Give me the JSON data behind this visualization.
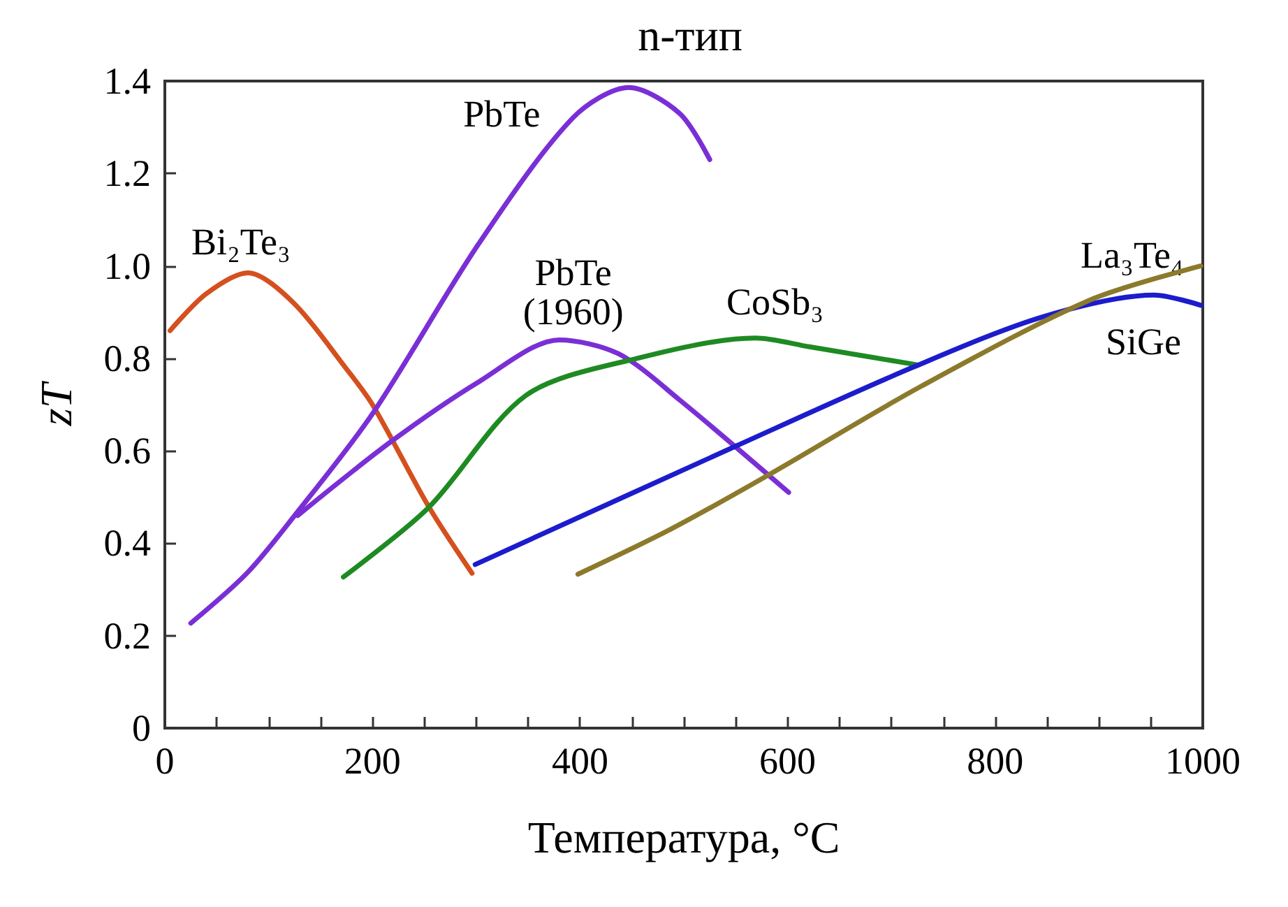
{
  "chart_data": {
    "type": "line",
    "title": "n-тип",
    "xlabel": "Температура, °C",
    "ylabel": "zT",
    "xlim": [
      0,
      1000
    ],
    "xticks": [
      0,
      {
        "value": 50,
        "label": null
      },
      200,
      {
        "value": 100,
        "label": null
      },
      {
        "value": 150,
        "label": null
      },
      {
        "value": 250,
        "label": null
      },
      {
        "value": 300,
        "label": null
      },
      {
        "value": 350,
        "label": null
      },
      400,
      {
        "value": 450,
        "label": null
      },
      {
        "value": 500,
        "label": null
      },
      {
        "value": 550,
        "label": null
      },
      600,
      {
        "value": 650,
        "label": null
      },
      {
        "value": 700,
        "label": null
      },
      {
        "value": 750,
        "label": null
      },
      800,
      {
        "value": 850,
        "label": null
      },
      {
        "value": 900,
        "label": null
      },
      {
        "value": 950,
        "label": null
      },
      1000
    ],
    "ylim": [
      0,
      1.4
    ],
    "yticks": [
      0,
      {
        "value": 0.2,
        "label": "0.2"
      },
      {
        "value": 0.4,
        "label": "0.4"
      },
      {
        "value": 0.6,
        "label": "0.6"
      },
      {
        "value": 0.8,
        "label": "0.8"
      },
      {
        "value": 1,
        "label": "1.0"
      },
      {
        "value": 1.2,
        "label": "1.2"
      },
      {
        "value": 1.4,
        "label": "1.4"
      }
    ],
    "grid": false,
    "marker": "none",
    "line_style": "solid",
    "series": [
      {
        "name": "Bi₂Te₃",
        "color": "#d4501e",
        "x": [
          5,
          40,
          80,
          124,
          174,
          200,
          254,
          296
        ],
        "values": [
          0.86,
          0.94,
          0.985,
          0.92,
          0.78,
          0.7,
          0.48,
          0.335
        ]
      },
      {
        "name": "PbTe",
        "color": "#7a2fd6",
        "x": [
          25,
          79,
          124,
          200,
          303,
          393,
          447,
          496,
          525
        ],
        "values": [
          0.227,
          0.335,
          0.457,
          0.68,
          1.05,
          1.32,
          1.386,
          1.33,
          1.23
        ]
      },
      {
        "name": "PbTe\n(1960)",
        "color": "#7a2fd6",
        "x": [
          128,
          218,
          303,
          380,
          437,
          496,
          601
        ],
        "values": [
          0.46,
          0.62,
          0.75,
          0.84,
          0.81,
          0.71,
          0.51
        ]
      },
      {
        "name": "CoSb₃",
        "color": "#1e8a22",
        "x": [
          172,
          254,
          348,
          455,
          569,
          621,
          725
        ],
        "values": [
          0.327,
          0.477,
          0.72,
          0.8,
          0.844,
          0.825,
          0.786
        ]
      },
      {
        "name": "SiGe",
        "color": "#1c1ccc",
        "x": [
          299,
          550,
          720,
          846,
          953,
          998
        ],
        "values": [
          0.354,
          0.61,
          0.78,
          0.89,
          0.937,
          0.915
        ]
      },
      {
        "name": "La₃Te₄",
        "color": "#8c7a2c",
        "x": [
          398,
          487,
          581,
          729,
          890,
          998
        ],
        "values": [
          0.333,
          0.43,
          0.547,
          0.74,
          0.925,
          1.0
        ]
      }
    ]
  }
}
